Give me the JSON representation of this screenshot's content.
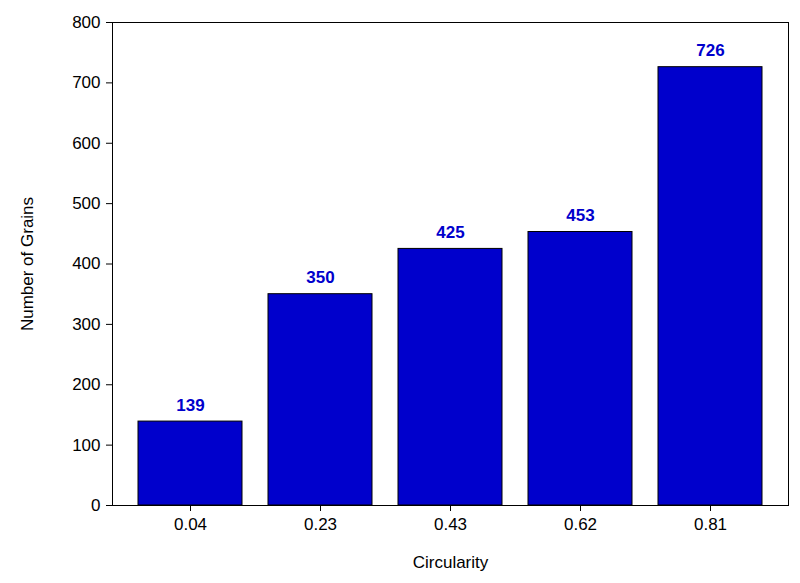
{
  "chart_data": {
    "type": "bar",
    "categories": [
      "0.04",
      "0.23",
      "0.43",
      "0.62",
      "0.81"
    ],
    "values": [
      139,
      350,
      425,
      453,
      726
    ],
    "color": "#0000cc",
    "xlabel": "Circularity",
    "ylabel": "Number of Grains",
    "ylim": [
      0,
      800
    ],
    "yticks": [
      0,
      100,
      200,
      300,
      400,
      500,
      600,
      700,
      800
    ],
    "data_labels": true,
    "grid": false
  }
}
